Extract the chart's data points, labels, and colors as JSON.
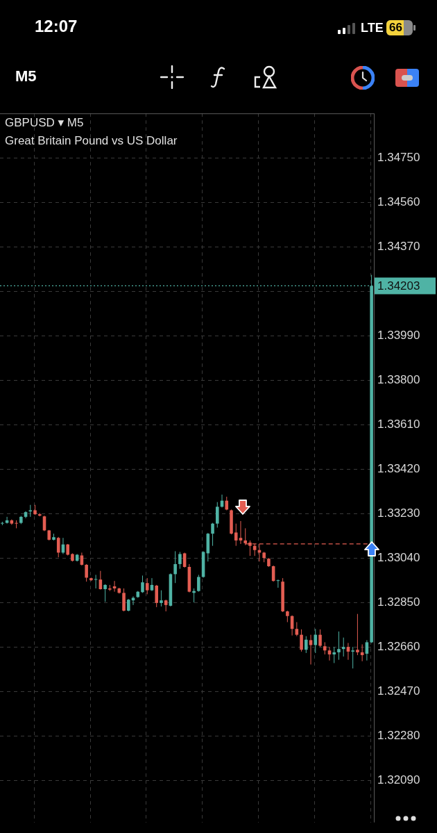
{
  "chart_data": {
    "type": "candlestick",
    "title": "GBPUSD ▾ M5",
    "subtitle": "Great Britain Pound vs US Dollar",
    "annotations": [
      "12:07",
      "LTE",
      "66",
      "M5"
    ],
    "categories": [
      null,
      null,
      null,
      null,
      null,
      null,
      null,
      null,
      null,
      null,
      null,
      null,
      null,
      null,
      null,
      null,
      null,
      null,
      null,
      null,
      null,
      null,
      null,
      null,
      null,
      null,
      null,
      null,
      null,
      null,
      null,
      null,
      null,
      null,
      null,
      null,
      null,
      null,
      null,
      null,
      null,
      null,
      null,
      null,
      null,
      null,
      null,
      null,
      null,
      null,
      null,
      null,
      null,
      null,
      null,
      null,
      null,
      null,
      null,
      null,
      null,
      null,
      null,
      null,
      null,
      null,
      null,
      null,
      null,
      null,
      null,
      null,
      null,
      null,
      null,
      null,
      null,
      null,
      null,
      null
    ],
    "ohlc": [
      [
        1.33187,
        1.33195,
        1.3318,
        1.3319
      ],
      [
        1.3319,
        1.33216,
        1.33187,
        1.33201
      ],
      [
        1.33201,
        1.33205,
        1.33182,
        1.33187
      ],
      [
        1.3319,
        1.33201,
        1.33167,
        1.33188
      ],
      [
        1.3319,
        1.3322,
        1.33185,
        1.33216
      ],
      [
        1.33216,
        1.3324,
        1.3321,
        1.33236
      ],
      [
        1.33239,
        1.33267,
        1.33216,
        1.33244
      ],
      [
        1.33244,
        1.33267,
        1.33224,
        1.33227
      ],
      [
        1.33227,
        1.33232,
        1.33218,
        1.33221
      ],
      [
        1.33218,
        1.33221,
        1.33155,
        1.33158
      ],
      [
        1.33158,
        1.3316,
        1.33115,
        1.33118
      ],
      [
        1.33118,
        1.33144,
        1.33115,
        1.33129
      ],
      [
        1.33126,
        1.3313,
        1.33043,
        1.33063
      ],
      [
        1.33063,
        1.33126,
        1.33057,
        1.33098
      ],
      [
        1.33098,
        1.331,
        1.33051,
        1.33054
      ],
      [
        1.33057,
        1.3306,
        1.33025,
        1.33028
      ],
      [
        1.33028,
        1.33057,
        1.33025,
        1.33054
      ],
      [
        1.33051,
        1.33063,
        1.33008,
        1.33011
      ],
      [
        1.33011,
        1.33014,
        1.32939,
        1.32956
      ],
      [
        1.32954,
        1.32956,
        1.32942,
        1.32945
      ],
      [
        1.32948,
        1.32968,
        1.3291,
        1.3295
      ],
      [
        1.32948,
        1.32985,
        1.32905,
        1.32907
      ],
      [
        1.32907,
        1.32928,
        1.32853,
        1.32925
      ],
      [
        1.3291,
        1.32925,
        1.32899,
        1.32905
      ],
      [
        1.32919,
        1.32942,
        1.32896,
        1.3291
      ],
      [
        1.3291,
        1.32913,
        1.32888,
        1.32891
      ],
      [
        1.32891,
        1.3291,
        1.32812,
        1.32815
      ],
      [
        1.32815,
        1.32865,
        1.32812,
        1.32862
      ],
      [
        1.32859,
        1.32876,
        1.32839,
        1.3287
      ],
      [
        1.32873,
        1.32899,
        1.3287,
        1.32896
      ],
      [
        1.32894,
        1.32965,
        1.32891,
        1.32936
      ],
      [
        1.32933,
        1.32954,
        1.32885,
        1.32902
      ],
      [
        1.32902,
        1.32954,
        1.32899,
        1.32925
      ],
      [
        1.32922,
        1.32925,
        1.3283,
        1.32848
      ],
      [
        1.32848,
        1.32902,
        1.32833,
        1.32859
      ],
      [
        1.32859,
        1.32862,
        1.32812,
        1.32839
      ],
      [
        1.32836,
        1.32974,
        1.32833,
        1.32971
      ],
      [
        1.32971,
        1.33069,
        1.32933,
        1.33014
      ],
      [
        1.33014,
        1.33066,
        1.32994,
        1.33057
      ],
      [
        1.3306,
        1.33063,
        1.32999,
        1.33002
      ],
      [
        1.33002,
        1.33014,
        1.32893,
        1.32896
      ],
      [
        1.32891,
        1.3291,
        1.3285,
        1.32899
      ],
      [
        1.32899,
        1.32968,
        1.32896,
        1.32959
      ],
      [
        1.32959,
        1.33069,
        1.32956,
        1.33066
      ],
      [
        1.3306,
        1.33147,
        1.33025,
        1.33144
      ],
      [
        1.33144,
        1.3319,
        1.33092,
        1.33187
      ],
      [
        1.33187,
        1.33279,
        1.3317,
        1.33259
      ],
      [
        1.33259,
        1.33311,
        1.33256,
        1.33285
      ],
      [
        1.33285,
        1.33302,
        1.33244,
        1.33247
      ],
      [
        1.33244,
        1.33247,
        1.33141,
        1.33144
      ],
      [
        1.33149,
        1.33187,
        1.33092,
        1.33115
      ],
      [
        1.33126,
        1.33198,
        1.331,
        1.33115
      ],
      [
        1.33115,
        1.33167,
        1.33095,
        1.33103
      ],
      [
        1.33106,
        1.33115,
        1.33049,
        1.33092
      ],
      [
        1.33092,
        1.331,
        1.33049,
        1.33074
      ],
      [
        1.33074,
        1.331,
        1.33025,
        1.33063
      ],
      [
        1.33063,
        1.33066,
        1.33022,
        1.3304
      ],
      [
        1.33037,
        1.3304,
        1.33002,
        1.33005
      ],
      [
        1.33005,
        1.33008,
        1.32939,
        1.32942
      ],
      [
        1.32942,
        1.32948,
        1.32913,
        1.32945
      ],
      [
        1.32939,
        1.32954,
        1.32809,
        1.32812
      ],
      [
        1.32812,
        1.32815,
        1.32766,
        1.32792
      ],
      [
        1.32792,
        1.32795,
        1.32709,
        1.32737
      ],
      [
        1.32737,
        1.32766,
        1.32706,
        1.32712
      ],
      [
        1.32712,
        1.32735,
        1.3264,
        1.32648
      ],
      [
        1.32648,
        1.32706,
        1.32634,
        1.32691
      ],
      [
        1.32689,
        1.32712,
        1.32585,
        1.32668
      ],
      [
        1.32668,
        1.32737,
        1.32634,
        1.32712
      ],
      [
        1.32712,
        1.32735,
        1.3266,
        1.32665
      ],
      [
        1.32663,
        1.3268,
        1.32628,
        1.32645
      ],
      [
        1.32645,
        1.3266,
        1.32602,
        1.32628
      ],
      [
        1.32628,
        1.3266,
        1.32591,
        1.32637
      ],
      [
        1.32637,
        1.32726,
        1.32605,
        1.32651
      ],
      [
        1.32651,
        1.327,
        1.32619,
        1.3266
      ],
      [
        1.3266,
        1.32677,
        1.32605,
        1.3264
      ],
      [
        1.3264,
        1.3266,
        1.32568,
        1.32645
      ],
      [
        1.32648,
        1.32801,
        1.32625,
        1.32637
      ],
      [
        1.32637,
        1.32671,
        1.32599,
        1.32625
      ],
      [
        1.32631,
        1.32689,
        1.32602,
        1.3268
      ],
      [
        1.3268,
        1.3425,
        1.32677,
        1.34203
      ]
    ],
    "colors": [
      "#4fb3a5",
      "#4fb3a5",
      "#e35d52",
      "#e35d52",
      "#4fb3a5",
      "#4fb3a5",
      "#4fb3a5",
      "#e35d52",
      "#e35d52",
      "#e35d52",
      "#e35d52",
      "#4fb3a5",
      "#e35d52",
      "#4fb3a5",
      "#e35d52",
      "#e35d52",
      "#4fb3a5",
      "#e35d52",
      "#e35d52",
      "#e35d52",
      "#4fb3a5",
      "#e35d52",
      "#4fb3a5",
      "#e35d52",
      "#e35d52",
      "#e35d52",
      "#e35d52",
      "#4fb3a5",
      "#4fb3a5",
      "#4fb3a5",
      "#4fb3a5",
      "#e35d52",
      "#4fb3a5",
      "#e35d52",
      "#4fb3a5",
      "#e35d52",
      "#4fb3a5",
      "#4fb3a5",
      "#4fb3a5",
      "#e35d52",
      "#e35d52",
      "#4fb3a5",
      "#4fb3a5",
      "#4fb3a5",
      "#4fb3a5",
      "#4fb3a5",
      "#4fb3a5",
      "#4fb3a5",
      "#e35d52",
      "#e35d52",
      "#e35d52",
      "#e35d52",
      "#e35d52",
      "#e35d52",
      "#e35d52",
      "#e35d52",
      "#e35d52",
      "#e35d52",
      "#e35d52",
      "#4fb3a5",
      "#e35d52",
      "#e35d52",
      "#e35d52",
      "#e35d52",
      "#e35d52",
      "#4fb3a5",
      "#e35d52",
      "#4fb3a5",
      "#e35d52",
      "#e35d52",
      "#e35d52",
      "#4fb3a5",
      "#4fb3a5",
      "#4fb3a5",
      "#e35d52",
      "#4fb3a5",
      "#e35d52",
      "#e35d52",
      "#4fb3a5",
      "#4fb3a5"
    ],
    "ylim": [
      1.3191,
      1.3494
    ],
    "yticks": [
      {
        "value": 1.3475,
        "label": "1.34750"
      },
      {
        "value": 1.3456,
        "label": "1.34560"
      },
      {
        "value": 1.3437,
        "label": "1.34370"
      },
      {
        "value": 1.3418,
        "label": null
      },
      {
        "value": 1.3399,
        "label": "1.33990"
      },
      {
        "value": 1.338,
        "label": "1.33800"
      },
      {
        "value": 1.3361,
        "label": "1.33610"
      },
      {
        "value": 1.3342,
        "label": "1.33420"
      },
      {
        "value": 1.3323,
        "label": "1.33230"
      },
      {
        "value": 1.3304,
        "label": "1.33040"
      },
      {
        "value": 1.3285,
        "label": "1.32850"
      },
      {
        "value": 1.3266,
        "label": "1.32660"
      },
      {
        "value": 1.3247,
        "label": "1.32470"
      },
      {
        "value": 1.3228,
        "label": "1.32280"
      },
      {
        "value": 1.3209,
        "label": "1.32090"
      }
    ],
    "ref_lines": [
      {
        "axis": "y",
        "value": 1.34203,
        "label": "1.34203",
        "color": "#4fb3a5",
        "line_style": "dotted"
      },
      {
        "axis": "y",
        "value": 1.331,
        "color": "#e35d52",
        "line_style": "dashed"
      }
    ],
    "grid": true,
    "tick_labels": "y"
  }
}
